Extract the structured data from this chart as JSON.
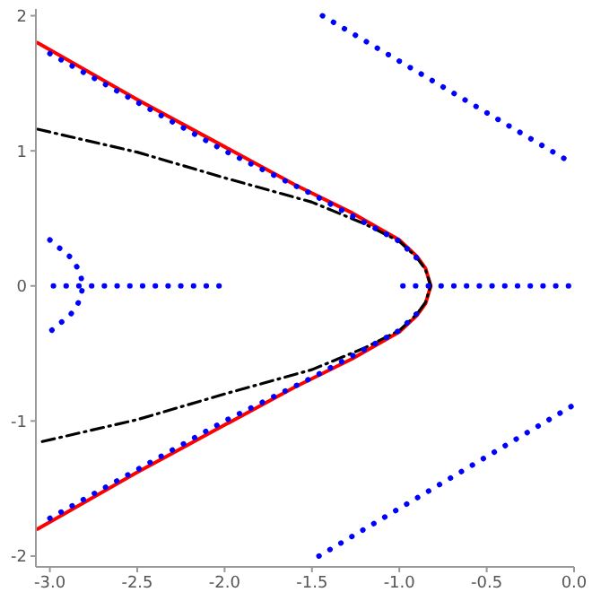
{
  "chart_data": {
    "type": "line",
    "xlim": [
      -3.08,
      0.0
    ],
    "ylim": [
      -2.08,
      2.05
    ],
    "xticks": [
      {
        "value": -3,
        "label": "-3.0"
      },
      {
        "value": -2.5,
        "label": "-2.5"
      },
      {
        "value": -2,
        "label": "-2.0"
      },
      {
        "value": -1.5,
        "label": "-1.5"
      },
      {
        "value": -1,
        "label": "-1.0"
      },
      {
        "value": -0.5,
        "label": "-0.5"
      },
      {
        "value": 0,
        "label": "0.0"
      }
    ],
    "yticks": [
      -2,
      -1,
      0,
      1,
      2
    ],
    "grid": false,
    "legend": false,
    "marker": "none",
    "series": [
      {
        "color": "#ff0000",
        "line_style": "solid",
        "x": [
          -3.07,
          -2.5,
          -2.0,
          -1.6,
          -1.27,
          -1.0,
          -0.9,
          -0.85,
          -0.82,
          -0.85,
          -0.9,
          -1.0,
          -1.27,
          -1.6,
          -2.0,
          -2.5,
          -3.07
        ],
        "values": [
          1.8,
          1.38,
          1.03,
          0.75,
          0.54,
          0.34,
          0.22,
          0.13,
          0,
          -0.13,
          -0.22,
          -0.34,
          -0.54,
          -0.75,
          -1.03,
          -1.38,
          -1.8
        ]
      },
      {
        "color": "#000000",
        "line_style": "dashdot",
        "x": [
          -3.07,
          -2.5,
          -2.0,
          -1.5,
          -1.2,
          -1.0,
          -0.9,
          -0.85,
          -0.82,
          -0.85,
          -0.9,
          -1.0,
          -1.2,
          -1.5,
          -2.0,
          -2.5,
          -3.07
        ],
        "values": [
          1.16,
          0.99,
          0.8,
          0.62,
          0.46,
          0.33,
          0.21,
          0.12,
          0,
          -0.12,
          -0.21,
          -0.33,
          -0.46,
          -0.62,
          -0.8,
          -0.99,
          -1.16
        ]
      },
      {
        "color": "#0000ff",
        "line_style": "dotted",
        "x": [
          -3.0,
          -2.5,
          -2.0,
          -1.5,
          -1.2,
          -1.0,
          -0.88
        ],
        "values": [
          1.72,
          1.36,
          1.0,
          0.68,
          0.47,
          0.33,
          0.18
        ]
      },
      {
        "color": "#0000ff",
        "line_style": "dotted",
        "x": [
          -3.0,
          -2.5,
          -2.0,
          -1.5,
          -1.2,
          -1.0,
          -0.88
        ],
        "values": [
          -1.72,
          -1.36,
          -1.0,
          -0.68,
          -0.47,
          -0.33,
          -0.18
        ]
      },
      {
        "color": "#0000ff",
        "line_style": "dotted",
        "x": [
          -0.98,
          0
        ],
        "values": [
          0,
          0
        ]
      },
      {
        "color": "#0000ff",
        "line_style": "dotted",
        "x": [
          -2.98,
          -1.98
        ],
        "values": [
          0,
          0
        ]
      },
      {
        "color": "#0000ff",
        "line_style": "dotted",
        "x": [
          -3.0,
          -2.88,
          -2.83,
          -2.81,
          -2.83,
          -2.88,
          -3.0
        ],
        "values": [
          0.34,
          0.21,
          0.11,
          0,
          -0.11,
          -0.21,
          -0.34
        ]
      },
      {
        "color": "#0000ff",
        "line_style": "dotted",
        "x": [
          -1.44,
          -0.72,
          0
        ],
        "values": [
          2.0,
          1.45,
          0.9
        ]
      },
      {
        "color": "#0000ff",
        "line_style": "dotted",
        "x": [
          -1.46,
          -0.73,
          0
        ],
        "values": [
          -2.0,
          -1.44,
          -0.88
        ]
      }
    ]
  }
}
